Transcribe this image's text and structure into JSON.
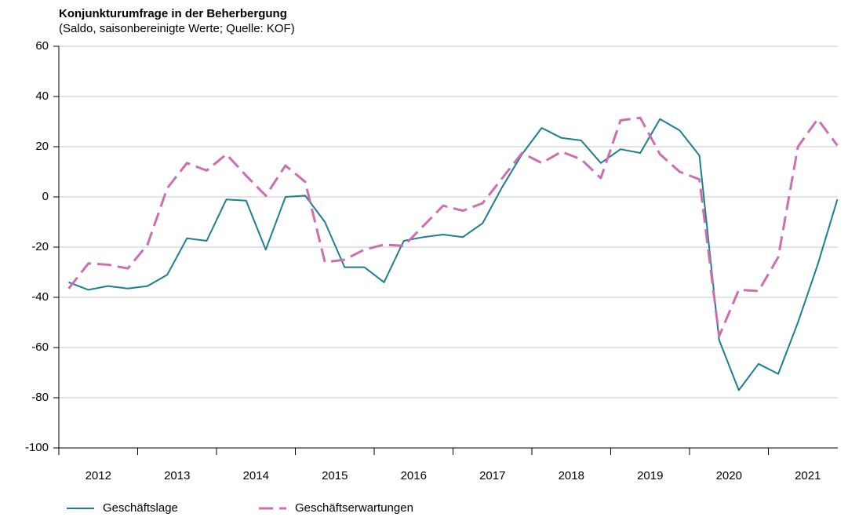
{
  "chart_data": {
    "type": "line",
    "title": "Konjunkturumfrage in der Beherbergung",
    "subtitle": "(Saldo, saisonbereinigte Werte; Quelle: KOF)",
    "years": [
      "2012",
      "2013",
      "2014",
      "2015",
      "2016",
      "2017",
      "2018",
      "2019",
      "2020",
      "2021"
    ],
    "points_per_year": 4,
    "ylim": [
      -100,
      60
    ],
    "yticks": [
      -100,
      -80,
      -60,
      -40,
      -20,
      0,
      20,
      40,
      60
    ],
    "grid": true,
    "legend": "bottom",
    "series": [
      {
        "name": "Geschäftslage",
        "color": "#1b7f8f",
        "dash": false,
        "values": [
          -34,
          -37,
          -35.5,
          -36.5,
          -35.5,
          -31,
          -16.5,
          -17.5,
          -1,
          -1.5,
          -21,
          0,
          0.5,
          -10,
          -28,
          -28,
          -34,
          -17.5,
          -16,
          -15,
          -16,
          -10.5,
          4,
          17,
          27.5,
          23.5,
          22.5,
          13.5,
          19,
          17.5,
          31,
          26.5,
          16.5,
          -57,
          -77,
          -66.5,
          -70.5,
          -50,
          -27,
          -1
        ]
      },
      {
        "name": "Geschäftserwartungen",
        "color": "#cc6fb1",
        "dash": true,
        "values": [
          -36.5,
          -26.5,
          -27,
          -28.5,
          -19,
          3.5,
          13.5,
          10.5,
          17,
          8.5,
          0.5,
          12.5,
          6,
          -26,
          -25,
          -21,
          -19,
          -19.5,
          -11.5,
          -3.5,
          -5.5,
          -2.5,
          7.5,
          17.5,
          13.5,
          18,
          15,
          7.5,
          30.5,
          31.5,
          17,
          10,
          7,
          -55.5,
          -37,
          -37.5,
          -24,
          20,
          31,
          20.5
        ]
      }
    ]
  }
}
